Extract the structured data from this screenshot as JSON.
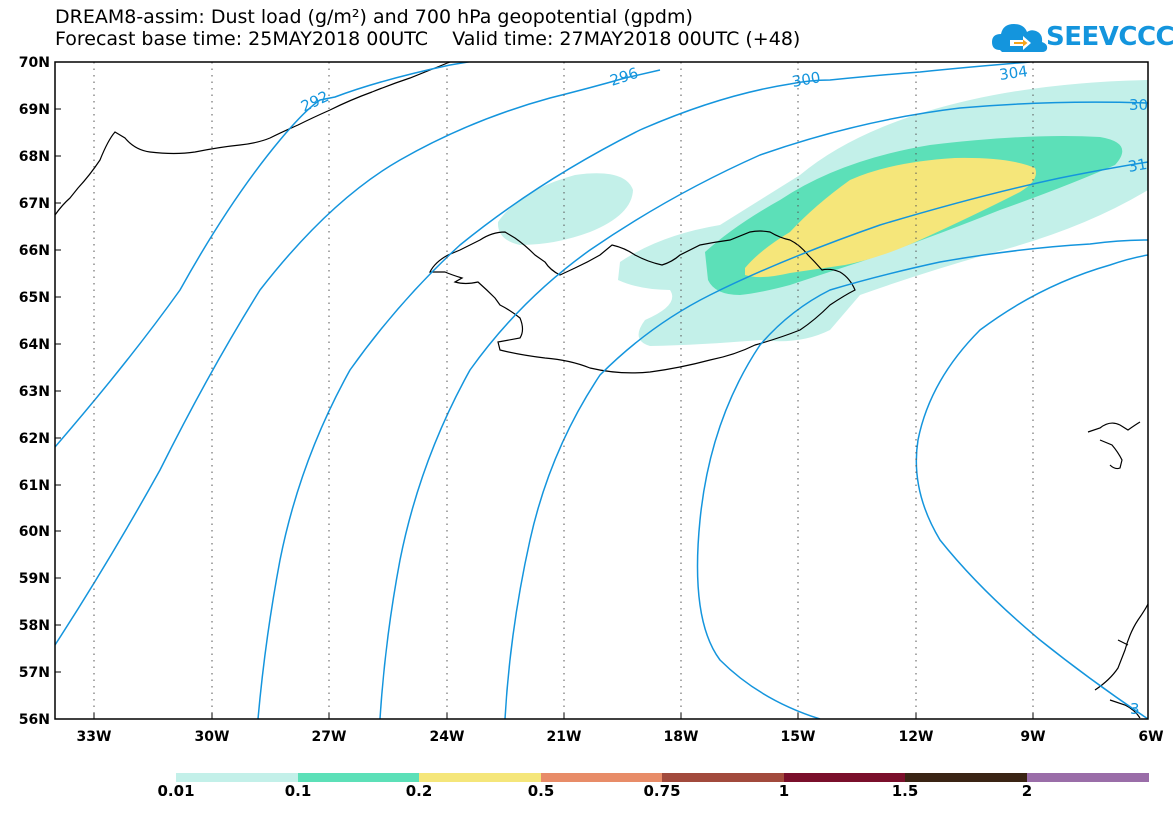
{
  "title": {
    "line1": "DREAM8-assim: Dust load (g/m²) and 700 hPa geopotential (gpdm)",
    "line2": "Forecast base time: 25MAY2018 00UTC    Valid time: 27MAY2018 00UTC (+48)"
  },
  "logo": {
    "text": "SEEVCCC",
    "colors": {
      "cloud": "#1495dd",
      "arrow": "#f7a51b"
    }
  },
  "map": {
    "lat_labels": [
      "70N",
      "69N",
      "68N",
      "67N",
      "66N",
      "65N",
      "64N",
      "63N",
      "62N",
      "61N",
      "60N",
      "59N",
      "58N",
      "57N",
      "56N"
    ],
    "lon_labels": [
      "33W",
      "30W",
      "27W",
      "24W",
      "21W",
      "18W",
      "15W",
      "12W",
      "9W",
      "6W"
    ],
    "contour_labels": [
      "292",
      "296",
      "300",
      "304",
      "30",
      "31",
      "3"
    ],
    "contour_color": "#1495dd",
    "dust_colors": {
      "0.01": "#c3f0e9",
      "0.1": "#5ce0b8",
      "0.2": "#f5e67a"
    }
  },
  "colorbar": {
    "labels": [
      "0.01",
      "0.1",
      "0.2",
      "0.5",
      "0.75",
      "1",
      "1.5",
      "2"
    ],
    "colors": [
      "#c3f0e9",
      "#5ce0b8",
      "#f5e67a",
      "#e88c68",
      "#a24a3c",
      "#7a0f2b",
      "#3a2414",
      "#9a6da8"
    ]
  }
}
